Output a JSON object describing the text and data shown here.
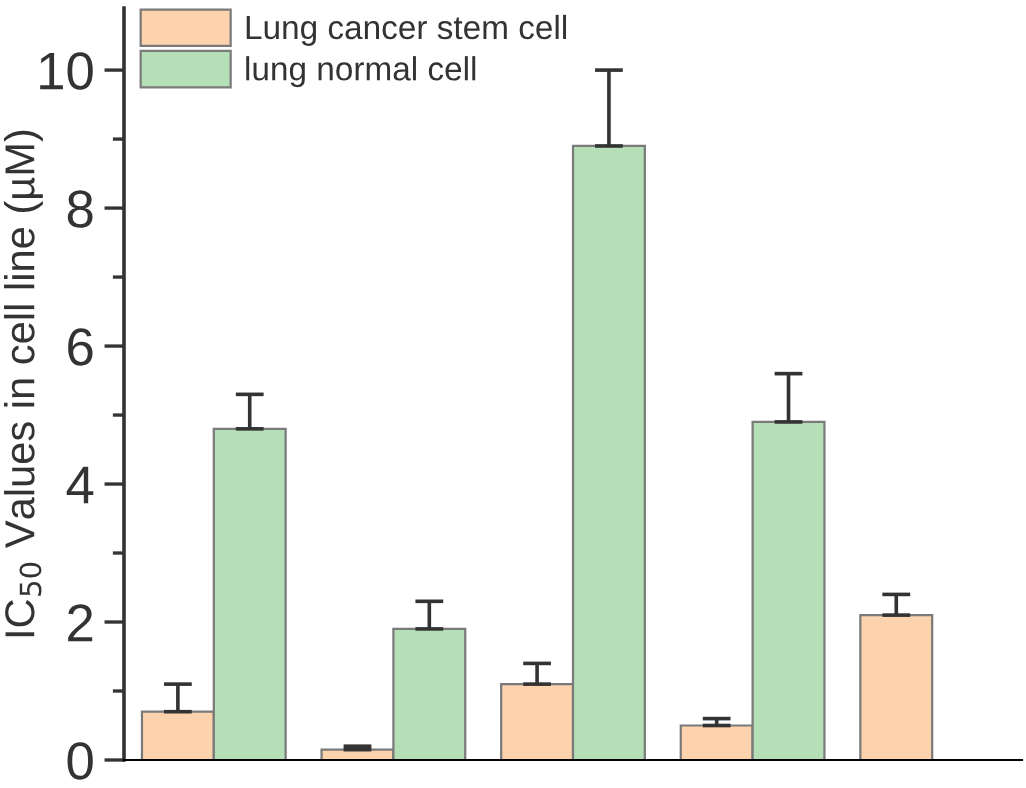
{
  "chart_data": {
    "type": "bar",
    "ylabel": "IC$_{50}$ Values in cell line (µM)",
    "categories": [
      null,
      null,
      null,
      null,
      null
    ],
    "series": [
      {
        "name": "Lung cancer stem cell",
        "color": "#fdd3ad",
        "values": [
          0.7,
          0.15,
          1.1,
          0.5,
          2.1
        ],
        "errors": [
          0.4,
          0.05,
          0.3,
          0.1,
          0.3
        ]
      },
      {
        "name": "lung normal cell",
        "color": "#b5e0b7",
        "values": [
          4.8,
          1.9,
          8.9,
          4.9,
          null
        ],
        "errors": [
          0.5,
          0.4,
          1.1,
          0.7,
          null
        ]
      }
    ],
    "ylim": [
      0,
      10.9
    ],
    "yticks": [
      0,
      2,
      4,
      6,
      8,
      10
    ],
    "tick_labels": "y",
    "legend": "top left",
    "grid": false
  }
}
